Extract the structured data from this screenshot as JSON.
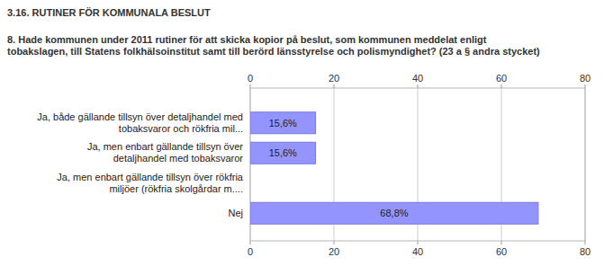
{
  "chart_data": {
    "type": "bar",
    "orientation": "horizontal",
    "subtitle": "3.16. RUTINER FÖR KOMMUNALA BESLUT",
    "title": "8. Hade kommunen under 2011 rutiner för att skicka kopior på beslut, som kommunen meddelat enligt tobakslagen, till Statens folkhälsoinstitut samt till berörd länsstyrelse och polismyndighet? (23 a § andra stycket)",
    "categories": [
      "Ja, både gällande tillsyn över detaljhandel med tobaksvaror och rökfria mil...",
      "Ja, men enbart gällande tillsyn över detaljhandel med tobaksvaror",
      "Ja, men enbart gällande tillsyn över rökfria miljöer (rökfria skolgårdar m....",
      "Nej"
    ],
    "values": [
      15.6,
      15.6,
      0,
      68.8
    ],
    "value_labels": [
      "15,6%",
      "15,6%",
      null,
      "68,8%"
    ],
    "data_labels": true,
    "color": "#9494ff",
    "xlim": [
      0,
      80
    ],
    "xticks": [
      0,
      20,
      40,
      60,
      80
    ],
    "grid": true
  }
}
